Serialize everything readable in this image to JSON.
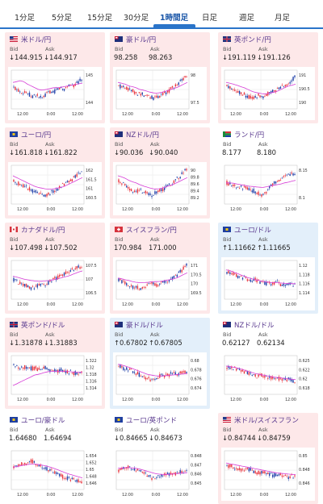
{
  "tabs": [
    {
      "label": "1分足"
    },
    {
      "label": "5分足"
    },
    {
      "label": "15分足"
    },
    {
      "label": "30分足"
    },
    {
      "label": "1時間足",
      "active": true
    },
    {
      "label": "日足"
    },
    {
      "label": "週足"
    },
    {
      "label": "月足"
    }
  ],
  "labels": {
    "bid": "Bid",
    "ask": "Ask"
  },
  "colors": {
    "up_bg": "#fde8e9",
    "down_bg": "#e3effa",
    "candle_up": "#e8323c",
    "candle_down": "#1e3fa8",
    "ma": "#d63bd6"
  },
  "cards": [
    {
      "name": "米ドル/円",
      "flag": "us",
      "bid": "↓144.915",
      "ask": "↓144.917",
      "theme": "up",
      "chart_data": {
        "type": "candlestick",
        "x_ticks": [
          "12:00",
          "0:00",
          "12:00"
        ],
        "y_ticks": [
          "145",
          "144"
        ],
        "trend": [
          0.55,
          0.5,
          0.45,
          0.42,
          0.4,
          0.3,
          0.35,
          0.3,
          0.25,
          0.35,
          0.45,
          0.4,
          0.5,
          0.55,
          0.5,
          0.6,
          0.65,
          0.6,
          0.7,
          0.8
        ],
        "ma": [
          0.7,
          0.72,
          0.75,
          0.72,
          0.65,
          0.6,
          0.55,
          0.5,
          0.48,
          0.5,
          0.52,
          0.55,
          0.55,
          0.56,
          0.58,
          0.6,
          0.62,
          0.64,
          0.66,
          0.68
        ]
      }
    },
    {
      "name": "豪ドル/円",
      "flag": "au",
      "bid": "98.258",
      "ask": "98.263",
      "theme": "up",
      "chart_data": {
        "type": "candlestick",
        "x_ticks": [
          "12:00",
          "0:00",
          "12:00"
        ],
        "y_ticks": [
          "98",
          "97.5"
        ],
        "trend": [
          0.6,
          0.58,
          0.55,
          0.5,
          0.45,
          0.4,
          0.38,
          0.35,
          0.3,
          0.28,
          0.25,
          0.3,
          0.35,
          0.4,
          0.45,
          0.55,
          0.6,
          0.7,
          0.8,
          0.9
        ],
        "ma": [
          0.7,
          0.68,
          0.65,
          0.6,
          0.58,
          0.55,
          0.5,
          0.48,
          0.45,
          0.42,
          0.4,
          0.4,
          0.42,
          0.45,
          0.48,
          0.52,
          0.55,
          0.6,
          0.65,
          0.7
        ]
      }
    },
    {
      "name": "英ポンド/円",
      "flag": "gb",
      "bid": "↓191.119",
      "ask": "↓191.126",
      "theme": "up",
      "chart_data": {
        "type": "candlestick",
        "x_ticks": [
          "12:00",
          "0:00",
          "12:00"
        ],
        "y_ticks": [
          "191",
          "190.5",
          "190"
        ],
        "trend": [
          0.6,
          0.55,
          0.5,
          0.45,
          0.4,
          0.35,
          0.3,
          0.25,
          0.3,
          0.35,
          0.3,
          0.35,
          0.4,
          0.45,
          0.5,
          0.55,
          0.6,
          0.65,
          0.75,
          0.85
        ],
        "ma": [
          0.7,
          0.68,
          0.65,
          0.62,
          0.58,
          0.55,
          0.5,
          0.45,
          0.42,
          0.4,
          0.38,
          0.38,
          0.4,
          0.42,
          0.45,
          0.5,
          0.55,
          0.6,
          0.62,
          0.65
        ]
      }
    },
    {
      "name": "ユーロ/円",
      "flag": "eu",
      "bid": "↓161.818",
      "ask": "↓161.822",
      "theme": "up",
      "chart_data": {
        "type": "candlestick",
        "x_ticks": [
          "12:00",
          "0:00",
          "12:00"
        ],
        "y_ticks": [
          "162",
          "161.5",
          "161",
          "160.5"
        ],
        "trend": [
          0.6,
          0.55,
          0.5,
          0.45,
          0.4,
          0.35,
          0.3,
          0.25,
          0.22,
          0.2,
          0.25,
          0.3,
          0.35,
          0.45,
          0.5,
          0.55,
          0.6,
          0.7,
          0.8,
          0.85
        ],
        "ma": [
          0.75,
          0.7,
          0.65,
          0.6,
          0.55,
          0.5,
          0.45,
          0.42,
          0.4,
          0.38,
          0.37,
          0.38,
          0.4,
          0.42,
          0.45,
          0.5,
          0.55,
          0.6,
          0.65,
          0.7
        ]
      }
    },
    {
      "name": "NZドル/円",
      "flag": "nz",
      "bid": "↓90.036",
      "ask": "↓90.040",
      "theme": "up",
      "chart_data": {
        "type": "candlestick",
        "x_ticks": [
          "12:00",
          "0:00",
          "12:00"
        ],
        "y_ticks": [
          "90",
          "89.8",
          "89.6",
          "89.4",
          "89.2"
        ],
        "trend": [
          0.6,
          0.55,
          0.5,
          0.4,
          0.35,
          0.3,
          0.35,
          0.3,
          0.25,
          0.2,
          0.25,
          0.3,
          0.35,
          0.4,
          0.5,
          0.55,
          0.65,
          0.7,
          0.85,
          0.9
        ],
        "ma": [
          0.75,
          0.72,
          0.68,
          0.62,
          0.58,
          0.55,
          0.5,
          0.46,
          0.43,
          0.4,
          0.38,
          0.38,
          0.4,
          0.43,
          0.47,
          0.5,
          0.55,
          0.6,
          0.65,
          0.7
        ]
      }
    },
    {
      "name": "ランド/円",
      "flag": "za",
      "bid": "8.177",
      "ask": "8.180",
      "theme": "none",
      "chart_data": {
        "type": "candlestick",
        "x_ticks": [
          "12:00",
          "0:00",
          "12:00"
        ],
        "y_ticks": [
          "8.15",
          "8.1"
        ],
        "trend": [
          0.55,
          0.5,
          0.48,
          0.45,
          0.42,
          0.4,
          0.38,
          0.35,
          0.3,
          0.25,
          0.2,
          0.3,
          0.45,
          0.55,
          0.6,
          0.65,
          0.7,
          0.75,
          0.8,
          0.82
        ],
        "ma": [
          0.55,
          0.55,
          0.54,
          0.52,
          0.5,
          0.48,
          0.46,
          0.45,
          0.44,
          0.43,
          0.42,
          0.44,
          0.46,
          0.48,
          0.5,
          0.52,
          0.55,
          0.57,
          0.6,
          0.62
        ]
      }
    },
    {
      "name": "カナダドル/円",
      "flag": "ca",
      "bid": "↓107.498",
      "ask": "↓107.502",
      "theme": "up",
      "chart_data": {
        "type": "candlestick",
        "x_ticks": [
          "12:00",
          "0:00",
          "12:00"
        ],
        "y_ticks": [
          "107.5",
          "107",
          "106.5"
        ],
        "trend": [
          0.5,
          0.45,
          0.4,
          0.35,
          0.3,
          0.25,
          0.3,
          0.35,
          0.4,
          0.35,
          0.45,
          0.5,
          0.55,
          0.6,
          0.65,
          0.7,
          0.75,
          0.8,
          0.85,
          0.88
        ],
        "ma": [
          0.6,
          0.58,
          0.55,
          0.52,
          0.5,
          0.48,
          0.47,
          0.46,
          0.46,
          0.47,
          0.48,
          0.5,
          0.52,
          0.55,
          0.58,
          0.6,
          0.64,
          0.68,
          0.72,
          0.75
        ]
      }
    },
    {
      "name": "スイスフラン/円",
      "flag": "ch",
      "bid": "170.984",
      "ask": "171.000",
      "theme": "up",
      "chart_data": {
        "type": "candlestick",
        "x_ticks": [
          "12:00",
          "0:00",
          "12:00"
        ],
        "y_ticks": [
          "171",
          "170.5",
          "170",
          "169.5"
        ],
        "trend": [
          0.5,
          0.45,
          0.4,
          0.35,
          0.3,
          0.28,
          0.25,
          0.3,
          0.35,
          0.4,
          0.38,
          0.35,
          0.4,
          0.45,
          0.5,
          0.55,
          0.6,
          0.7,
          0.8,
          0.9
        ],
        "ma": [
          0.55,
          0.53,
          0.5,
          0.48,
          0.45,
          0.43,
          0.42,
          0.42,
          0.43,
          0.44,
          0.45,
          0.45,
          0.46,
          0.48,
          0.5,
          0.52,
          0.55,
          0.6,
          0.65,
          0.7
        ]
      }
    },
    {
      "name": "ユーロ/ドル",
      "flag": "eu2",
      "bid": "↑1.11662",
      "ask": "↑1.11665",
      "theme": "down",
      "chart_data": {
        "type": "candlestick",
        "x_ticks": [
          "12:00",
          "0:00",
          "12:00"
        ],
        "y_ticks": [
          "1.12",
          "1.118",
          "1.116",
          "1.114"
        ],
        "trend": [
          0.7,
          0.68,
          0.65,
          0.6,
          0.58,
          0.55,
          0.5,
          0.48,
          0.5,
          0.45,
          0.42,
          0.4,
          0.38,
          0.4,
          0.42,
          0.38,
          0.35,
          0.4,
          0.38,
          0.36
        ],
        "ma": [
          0.78,
          0.76,
          0.72,
          0.68,
          0.64,
          0.6,
          0.56,
          0.53,
          0.5,
          0.48,
          0.46,
          0.44,
          0.43,
          0.42,
          0.42,
          0.41,
          0.4,
          0.4,
          0.39,
          0.39
        ]
      }
    },
    {
      "name": "英ポンド/ドル",
      "flag": "gb",
      "bid": "↓1.31878",
      "ask": "↓1.31883",
      "theme": "up",
      "chart_data": {
        "type": "candlestick",
        "x_ticks": [
          "12:00",
          "0:00",
          "12:00"
        ],
        "y_ticks": [
          "1.322",
          "1.32",
          "1.318",
          "1.316",
          "1.314"
        ],
        "trend": [
          0.8,
          0.75,
          0.7,
          0.72,
          0.7,
          0.68,
          0.7,
          0.65,
          0.68,
          0.7,
          0.65,
          0.62,
          0.6,
          0.65,
          0.6,
          0.58,
          0.6,
          0.55,
          0.58,
          0.55
        ],
        "ma": [
          0.2,
          0.25,
          0.3,
          0.35,
          0.4,
          0.45,
          0.5,
          0.52,
          0.55,
          0.58,
          0.6,
          0.6,
          0.6,
          0.6,
          0.6,
          0.6,
          0.59,
          0.58,
          0.58,
          0.58
        ]
      }
    },
    {
      "name": "豪ドル/ドル",
      "flag": "au",
      "bid": "↑0.67802",
      "ask": "↑0.67805",
      "theme": "down",
      "chart_data": {
        "type": "candlestick",
        "x_ticks": [
          "12:00",
          "0:00",
          "12:00"
        ],
        "y_ticks": [
          "0.68",
          "0.678",
          "0.676",
          "0.674"
        ],
        "trend": [
          0.75,
          0.7,
          0.68,
          0.65,
          0.6,
          0.55,
          0.5,
          0.45,
          0.4,
          0.35,
          0.4,
          0.45,
          0.5,
          0.48,
          0.5,
          0.55,
          0.52,
          0.55,
          0.58,
          0.6
        ],
        "ma": [
          0.8,
          0.78,
          0.75,
          0.72,
          0.68,
          0.64,
          0.6,
          0.56,
          0.52,
          0.5,
          0.48,
          0.47,
          0.47,
          0.48,
          0.49,
          0.5,
          0.51,
          0.52,
          0.53,
          0.54
        ]
      }
    },
    {
      "name": "NZドル/ドル",
      "flag": "nz",
      "bid": "0.62127",
      "ask": "0.62134",
      "theme": "none",
      "chart_data": {
        "type": "candlestick",
        "x_ticks": [
          "12:00",
          "0:00",
          "12:00"
        ],
        "y_ticks": [
          "0.625",
          "0.622",
          "0.62",
          "0.618"
        ],
        "trend": [
          0.7,
          0.72,
          0.68,
          0.65,
          0.6,
          0.58,
          0.55,
          0.5,
          0.48,
          0.45,
          0.5,
          0.45,
          0.42,
          0.4,
          0.42,
          0.38,
          0.35,
          0.38,
          0.35,
          0.32
        ],
        "ma": [
          0.75,
          0.74,
          0.72,
          0.7,
          0.67,
          0.64,
          0.6,
          0.57,
          0.54,
          0.52,
          0.5,
          0.48,
          0.46,
          0.44,
          0.43,
          0.42,
          0.4,
          0.39,
          0.38,
          0.37
        ]
      }
    },
    {
      "name": "ユーロ/豪ドル",
      "flag": "eu2",
      "bid": "1.64680",
      "ask": "1.64694",
      "theme": "none",
      "chart_data": {
        "type": "candlestick",
        "x_ticks": [
          "12:00",
          "0:00",
          "12:00"
        ],
        "y_ticks": [
          "1.654",
          "1.652",
          "1.65",
          "1.648",
          "1.646"
        ],
        "trend": [
          0.6,
          0.65,
          0.7,
          0.68,
          0.72,
          0.75,
          0.7,
          0.65,
          0.6,
          0.55,
          0.5,
          0.45,
          0.4,
          0.35,
          0.3,
          0.28,
          0.25,
          0.22,
          0.2,
          0.18
        ],
        "ma": [
          0.58,
          0.6,
          0.62,
          0.64,
          0.66,
          0.67,
          0.67,
          0.66,
          0.64,
          0.62,
          0.59,
          0.56,
          0.52,
          0.48,
          0.44,
          0.4,
          0.37,
          0.34,
          0.31,
          0.28
        ]
      }
    },
    {
      "name": "ユーロ/英ポンド",
      "flag": "eu2",
      "bid": "↓0.84665",
      "ask": "↓0.84673",
      "theme": "none",
      "chart_data": {
        "type": "candlestick",
        "x_ticks": [
          "12:00",
          "0:00",
          "12:00"
        ],
        "y_ticks": [
          "0.848",
          "0.847",
          "0.846",
          "0.845"
        ],
        "trend": [
          0.5,
          0.55,
          0.6,
          0.58,
          0.55,
          0.5,
          0.45,
          0.4,
          0.35,
          0.3,
          0.25,
          0.3,
          0.35,
          0.4,
          0.38,
          0.42,
          0.4,
          0.45,
          0.42,
          0.45
        ],
        "ma": [
          0.55,
          0.56,
          0.57,
          0.57,
          0.56,
          0.55,
          0.53,
          0.5,
          0.47,
          0.44,
          0.41,
          0.39,
          0.38,
          0.38,
          0.38,
          0.39,
          0.4,
          0.41,
          0.42,
          0.43
        ]
      }
    },
    {
      "name": "米ドル/スイスフラン",
      "flag": "us",
      "bid": "↓0.84744",
      "ask": "↓0.84759",
      "theme": "up",
      "chart_data": {
        "type": "candlestick",
        "x_ticks": [
          "12:00",
          "0:00",
          "12:00"
        ],
        "y_ticks": [
          "0.85",
          "0.848",
          "0.846"
        ],
        "trend": [
          0.6,
          0.62,
          0.58,
          0.55,
          0.5,
          0.48,
          0.52,
          0.5,
          0.45,
          0.42,
          0.45,
          0.4,
          0.38,
          0.35,
          0.4,
          0.38,
          0.35,
          0.3,
          0.32,
          0.3
        ],
        "ma": [
          0.7,
          0.68,
          0.66,
          0.64,
          0.62,
          0.6,
          0.58,
          0.56,
          0.54,
          0.52,
          0.5,
          0.48,
          0.46,
          0.44,
          0.42,
          0.41,
          0.4,
          0.39,
          0.38,
          0.37
        ]
      }
    }
  ]
}
